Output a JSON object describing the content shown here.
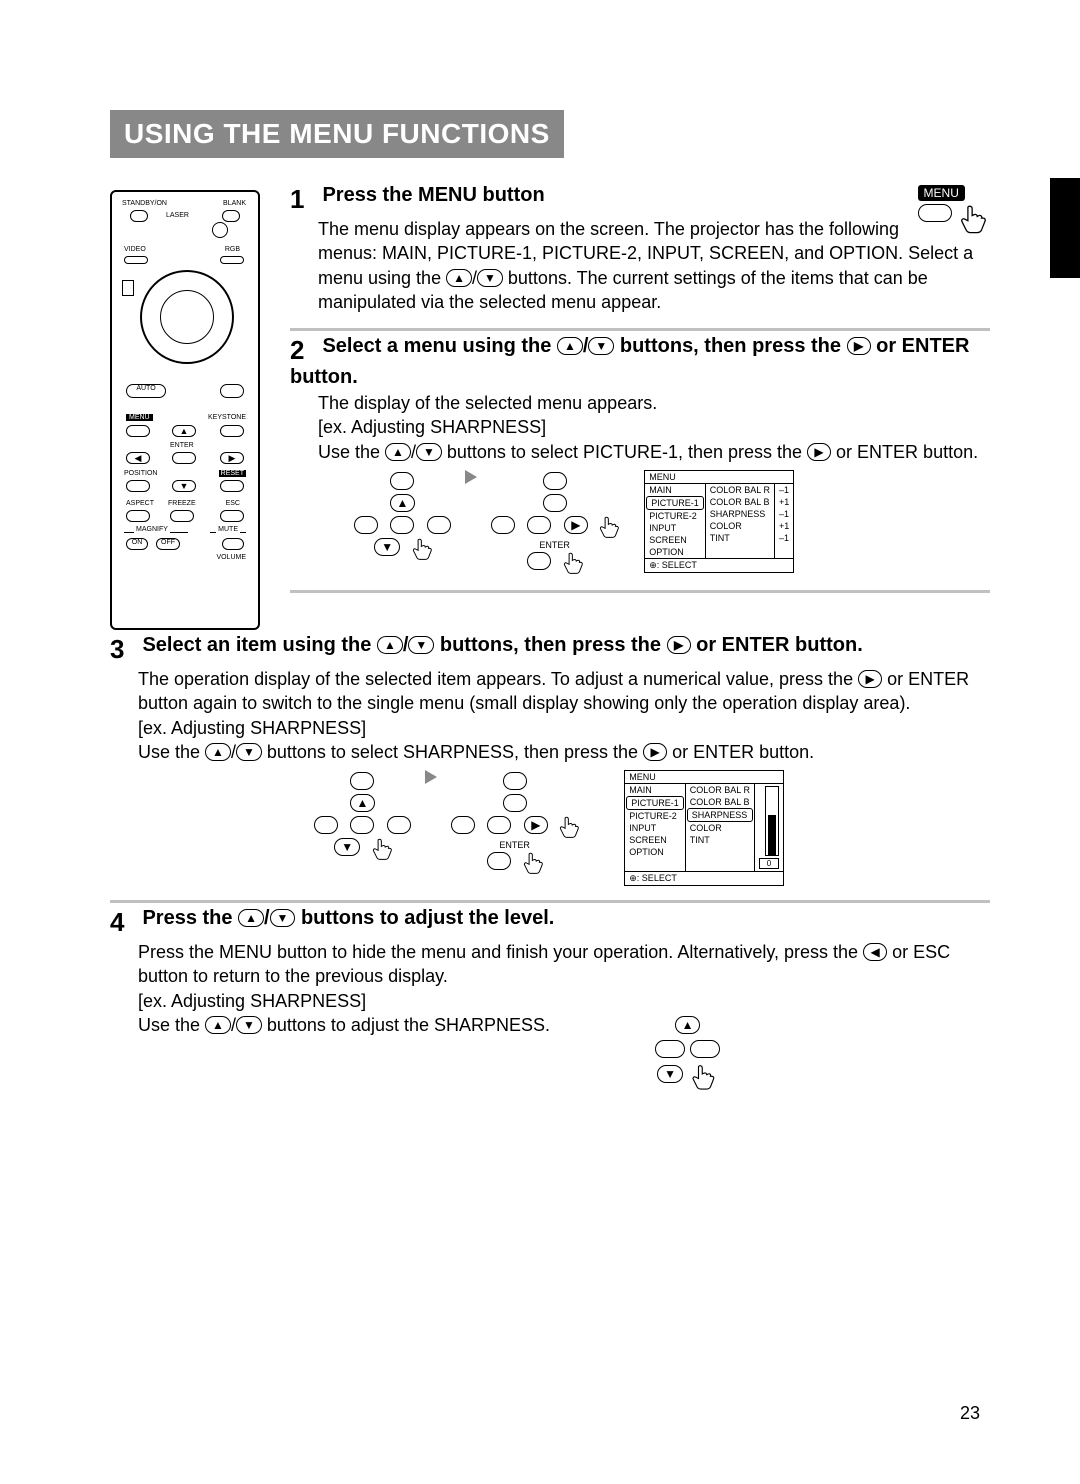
{
  "page_number": "23",
  "section_title": "USING THE MENU FUNCTIONS",
  "remote": {
    "labels": {
      "standby": "STANDBY/ON",
      "blank": "BLANK",
      "laser": "LASER",
      "video": "VIDEO",
      "rgb": "RGB",
      "auto": "AUTO",
      "menu": "MENU",
      "keystone": "KEYSTONE",
      "enter": "ENTER",
      "position": "POSITION",
      "reset": "RESET",
      "aspect": "ASPECT",
      "freeze": "FREEZE",
      "esc": "ESC",
      "magnify": "MAGNIFY",
      "mute": "MUTE",
      "on": "ON",
      "off": "OFF",
      "volume": "VOLUME"
    }
  },
  "step1": {
    "heading": "Press the MENU button",
    "menu_button_label": "MENU",
    "body_a": "The menu display appears on the screen. The projector has the following menus: MAIN, PICTURE-1, PICTURE-2, INPUT, SCREEN, and OPTION. Select a menu using the ",
    "body_b": " buttons. The current settings of the items that can be manipulated via the selected menu appear."
  },
  "step2": {
    "heading_a": "Select a menu using the ",
    "heading_b": " buttons, then press the ",
    "heading_c": " or ENTER button.",
    "body_a": "The display of the selected menu appears.",
    "ex": "[ex. Adjusting SHARPNESS]",
    "body_b_a": "Use the ",
    "body_b_b": " buttons to select PICTURE-1, then press the ",
    "body_b_c": " or ENTER button.",
    "enter_label": "ENTER",
    "menu": {
      "title": "MENU",
      "left": [
        "MAIN",
        "PICTURE-1",
        "PICTURE-2",
        "INPUT",
        "SCREEN",
        "OPTION"
      ],
      "selected_left": "PICTURE-1",
      "right": [
        "COLOR BAL R",
        "COLOR BAL B",
        "SHARPNESS",
        "COLOR",
        "TINT"
      ],
      "vals": [
        "–1",
        "+1",
        "–1",
        "+1",
        "–1"
      ],
      "footer": ": SELECT"
    }
  },
  "step3": {
    "heading_a": "Select an item using the ",
    "heading_b": " buttons, then press the ",
    "heading_c": " or ENTER button.",
    "body_a_a": "The operation display of the selected item appears. To adjust a numerical value, press the ",
    "body_a_b": " or ENTER button again to switch to the single menu (small display showing only the operation display area).",
    "ex": "[ex. Adjusting SHARPNESS]",
    "body_b_a": "Use the ",
    "body_b_b": " buttons to select SHARPNESS, then press the ",
    "body_b_c": " or ENTER button.",
    "enter_label": "ENTER",
    "menu": {
      "title": "MENU",
      "left": [
        "MAIN",
        "PICTURE-1",
        "PICTURE-2",
        "INPUT",
        "SCREEN",
        "OPTION"
      ],
      "selected_left": "PICTURE-1",
      "right": [
        "COLOR BAL R",
        "COLOR BAL B",
        "SHARPNESS",
        "COLOR",
        "TINT"
      ],
      "selected_right": "SHARPNESS",
      "slider_value": "0",
      "footer": ": SELECT"
    }
  },
  "step4": {
    "heading_a": "Press the ",
    "heading_b": " buttons to adjust the level.",
    "body_a_a": "Press the MENU button to hide the menu and finish your operation. Alternatively, press the ",
    "body_a_b": " or ESC button to return to the previous display.",
    "ex": "[ex. Adjusting SHARPNESS]",
    "body_b_a": "Use the ",
    "body_b_b": " buttons to adjust the SHARPNESS."
  }
}
